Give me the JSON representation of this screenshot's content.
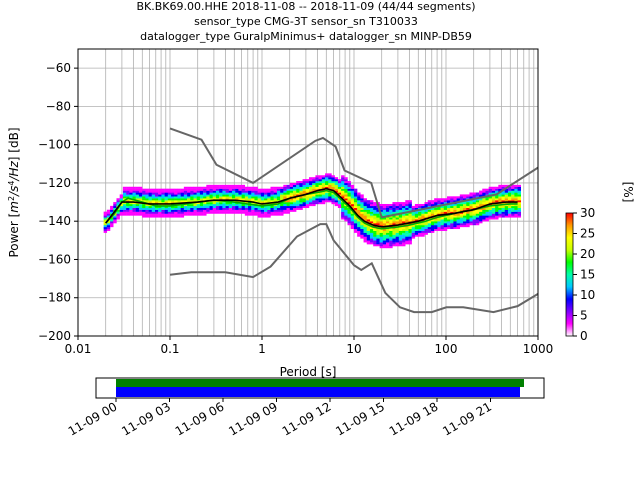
{
  "title": {
    "line1": "BK.BK69.00.HHE   2018-11-08 -- 2018-11-09  (44/44 segments)",
    "line2": "sensor_type CMG-3T sensor_sn T310033",
    "line3": "datalogger_type GuralpMinimus+ datalogger_sn MINP-DB59"
  },
  "chart_data": {
    "type": "heatmap",
    "xlabel": "Period [s]",
    "ylabel_parts": [
      "Power [",
      "m",
      "2",
      "/s",
      "4",
      "/Hz",
      "] [dB]"
    ],
    "xscale": "log",
    "xlim": [
      0.01,
      1000
    ],
    "ylim": [
      -200,
      -50
    ],
    "xticks": [
      {
        "v": 0.01,
        "label": "0.01"
      },
      {
        "v": 0.1,
        "label": "0.1"
      },
      {
        "v": 1,
        "label": "1"
      },
      {
        "v": 10,
        "label": "10"
      },
      {
        "v": 100,
        "label": "100"
      },
      {
        "v": 1000,
        "label": "1000"
      }
    ],
    "yticks": [
      {
        "v": -60,
        "label": "−60"
      },
      {
        "v": -80,
        "label": "−80"
      },
      {
        "v": -100,
        "label": "−100"
      },
      {
        "v": -120,
        "label": "−120"
      },
      {
        "v": -140,
        "label": "−140"
      },
      {
        "v": -160,
        "label": "−160"
      },
      {
        "v": -180,
        "label": "−180"
      },
      {
        "v": -200,
        "label": "−200"
      }
    ],
    "grid": true,
    "noise_models": [
      {
        "points": [
          [
            0.1,
            -91.5
          ],
          [
            0.22,
            -97.4
          ],
          [
            0.32,
            -110.5
          ],
          [
            0.8,
            -120
          ],
          [
            3.8,
            -98
          ],
          [
            4.6,
            -96.5
          ],
          [
            6.3,
            -101
          ],
          [
            7.9,
            -113.5
          ],
          [
            15.4,
            -120
          ],
          [
            20,
            -138
          ],
          [
            354,
            -126
          ],
          [
            1000,
            -112
          ]
        ]
      },
      {
        "points": [
          [
            0.1,
            -168
          ],
          [
            0.17,
            -166.7
          ],
          [
            0.4,
            -166.7
          ],
          [
            0.8,
            -169.2
          ],
          [
            1.24,
            -163.7
          ],
          [
            2.4,
            -148
          ],
          [
            4.3,
            -141.5
          ],
          [
            5,
            -141.5
          ],
          [
            6,
            -150
          ],
          [
            10,
            -163
          ],
          [
            12,
            -165.5
          ],
          [
            15.6,
            -162
          ],
          [
            21.9,
            -177.5
          ],
          [
            31.6,
            -185
          ],
          [
            45,
            -187.5
          ],
          [
            70,
            -187.5
          ],
          [
            101,
            -185
          ],
          [
            154,
            -185
          ],
          [
            328,
            -187.5
          ],
          [
            600,
            -184.4
          ],
          [
            1000,
            -178
          ]
        ]
      }
    ],
    "mean_curve": {
      "points": [
        [
          0.02,
          -141
        ],
        [
          0.025,
          -136
        ],
        [
          0.03,
          -130
        ],
        [
          0.035,
          -128
        ],
        [
          0.05,
          -130
        ],
        [
          0.07,
          -132
        ],
        [
          0.1,
          -132
        ],
        [
          0.15,
          -131
        ],
        [
          0.2,
          -130
        ],
        [
          0.3,
          -129
        ],
        [
          0.5,
          -130
        ],
        [
          0.7,
          -131
        ],
        [
          1,
          -132
        ],
        [
          1.5,
          -131
        ],
        [
          2,
          -128
        ],
        [
          3,
          -126
        ],
        [
          4,
          -125
        ],
        [
          5,
          -124
        ],
        [
          6,
          -125
        ],
        [
          7,
          -128
        ],
        [
          9,
          -133
        ],
        [
          11,
          -138
        ],
        [
          13,
          -141
        ],
        [
          16,
          -143
        ],
        [
          20,
          -144
        ],
        [
          30,
          -143
        ],
        [
          40,
          -142
        ],
        [
          60,
          -140
        ],
        [
          80,
          -138
        ],
        [
          100,
          -137
        ],
        [
          150,
          -135
        ],
        [
          200,
          -134
        ],
        [
          300,
          -132
        ],
        [
          500,
          -131
        ],
        [
          600,
          -131
        ]
      ]
    },
    "mode_curve": {
      "points": [
        [
          0.02,
          -141
        ],
        [
          0.025,
          -135
        ],
        [
          0.03,
          -130
        ],
        [
          0.04,
          -130
        ],
        [
          0.06,
          -131
        ],
        [
          0.1,
          -131
        ],
        [
          0.2,
          -130
        ],
        [
          0.3,
          -129
        ],
        [
          0.5,
          -129
        ],
        [
          0.8,
          -130
        ],
        [
          1,
          -131
        ],
        [
          1.5,
          -130
        ],
        [
          2,
          -128
        ],
        [
          3,
          -126
        ],
        [
          4,
          -124
        ],
        [
          5,
          -123
        ],
        [
          6,
          -124
        ],
        [
          7,
          -127
        ],
        [
          9,
          -132
        ],
        [
          11,
          -137
        ],
        [
          13,
          -140
        ],
        [
          16,
          -142
        ],
        [
          20,
          -143
        ],
        [
          30,
          -142
        ],
        [
          50,
          -140
        ],
        [
          80,
          -137
        ],
        [
          120,
          -136
        ],
        [
          200,
          -134
        ],
        [
          300,
          -131
        ],
        [
          450,
          -130
        ],
        [
          600,
          -130
        ]
      ]
    },
    "colorbar": {
      "label": "[%]",
      "min": 0,
      "max": 30,
      "ticks": [
        {
          "v": 0,
          "label": "0"
        },
        {
          "v": 5,
          "label": "5"
        },
        {
          "v": 10,
          "label": "10"
        },
        {
          "v": 15,
          "label": "15"
        },
        {
          "v": 20,
          "label": "20"
        },
        {
          "v": 25,
          "label": "25"
        },
        {
          "v": 30,
          "label": "30"
        }
      ],
      "colors": [
        "#ffffff",
        "#ff00ff",
        "#7f00ff",
        "#0000ff",
        "#00c8ff",
        "#00ffaa",
        "#00ff00",
        "#c8ff00",
        "#ffff00",
        "#ff9900",
        "#ff0000"
      ]
    },
    "timeline": {
      "tick_labels": [
        "11-09 00",
        "11-09 03",
        "11-09 06",
        "11-09 09",
        "11-09 12",
        "11-09 15",
        "11-09 18",
        "11-09 21"
      ],
      "bar_colors": [
        "#008000",
        "#0000ff"
      ]
    }
  }
}
